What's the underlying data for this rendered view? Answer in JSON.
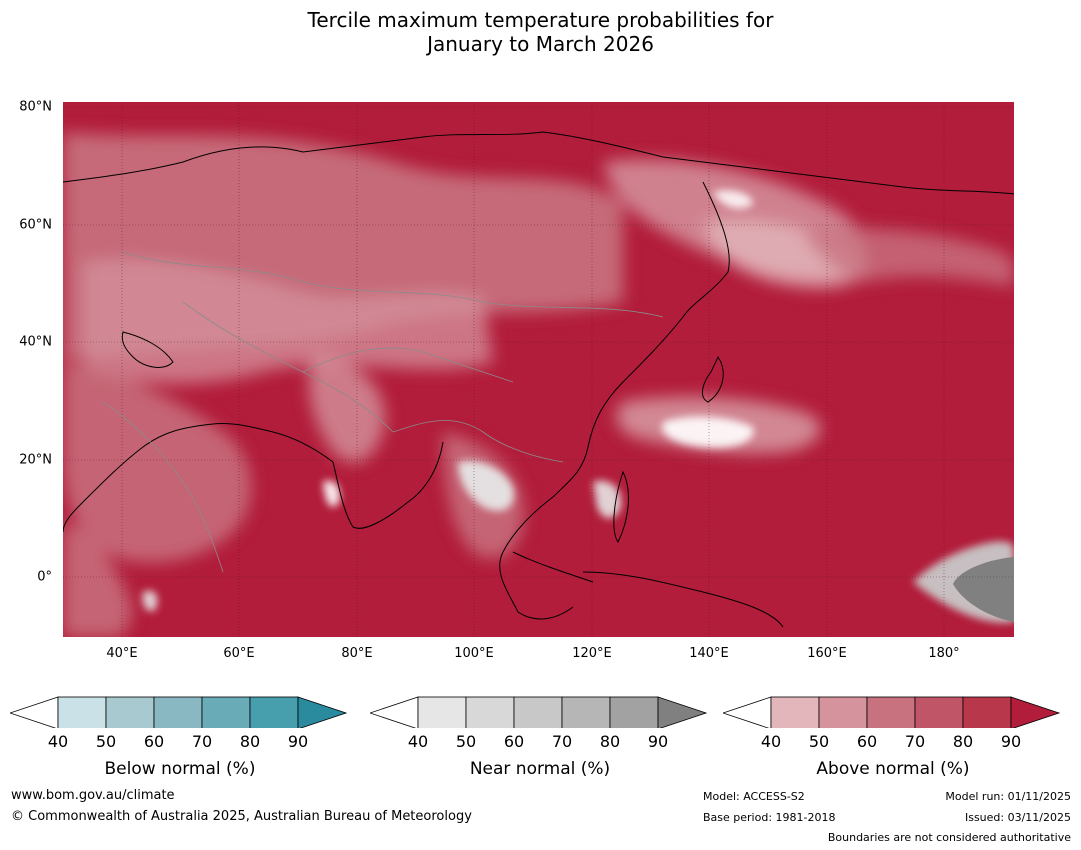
{
  "title": {
    "line1": "Tercile maximum temperature probabilities for",
    "line2": "January to March 2026"
  },
  "map": {
    "lat_labels": [
      "80°N",
      "60°N",
      "40°N",
      "20°N",
      "0°"
    ],
    "lon_labels": [
      "40°E",
      "60°E",
      "80°E",
      "100°E",
      "120°E",
      "140°E",
      "160°E",
      "180°"
    ],
    "extent": {
      "lon_min": 30,
      "lon_max": 192,
      "lat_min": -10,
      "lat_max": 81
    }
  },
  "colorbars": [
    {
      "title": "Below normal (%)",
      "ticks": [
        "40",
        "50",
        "60",
        "70",
        "80",
        "90"
      ],
      "colors": [
        "#ffffff",
        "#c9e1e7",
        "#a8c9cf",
        "#8ab8c2",
        "#6aabb8",
        "#479fae",
        "#2a8a9e"
      ]
    },
    {
      "title": "Near normal (%)",
      "ticks": [
        "40",
        "50",
        "60",
        "70",
        "80",
        "90"
      ],
      "colors": [
        "#ffffff",
        "#e6e6e6",
        "#d8d8d8",
        "#c8c8c8",
        "#b6b6b6",
        "#a2a2a2",
        "#808080"
      ]
    },
    {
      "title": "Above normal (%)",
      "ticks": [
        "40",
        "50",
        "60",
        "70",
        "80",
        "90"
      ],
      "colors": [
        "#ffffff",
        "#e3b6bc",
        "#d5939d",
        "#c8727f",
        "#bf5566",
        "#b9374b",
        "#b21d3b"
      ]
    }
  ],
  "footer": {
    "website": "www.bom.gov.au/climate",
    "copyright": "© Commonwealth of Australia 2025, Australian Bureau of Meteorology",
    "model": "Model: ACCESS-S2",
    "base_period": "Base period: 1981-2018",
    "model_run": "Model run: 01/11/2025",
    "issued": "Issued: 03/11/2025",
    "boundaries": "Boundaries are not considered authoritative"
  }
}
